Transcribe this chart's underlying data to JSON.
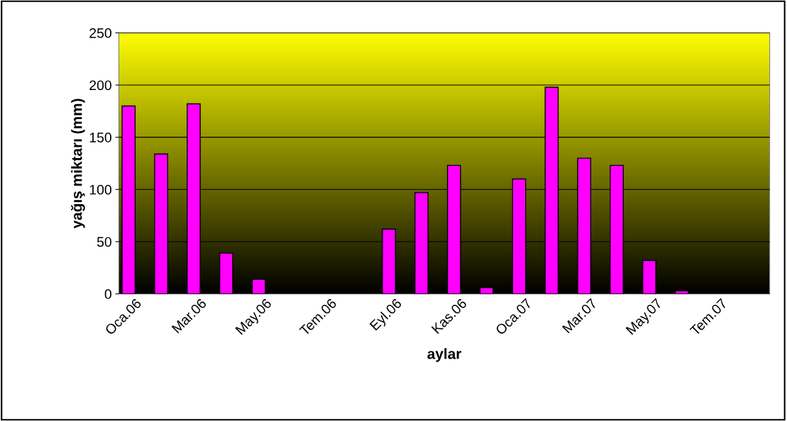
{
  "chart_data": {
    "type": "bar",
    "xlabel": "aylar",
    "ylabel": "yağış miktarı (mm)",
    "categories": [
      "Oca.06",
      null,
      "Mar.06",
      null,
      "May.06",
      null,
      "Tem.06",
      null,
      "Eyl.06",
      null,
      "Kas.06",
      null,
      "Oca.07",
      null,
      "Mar.07",
      null,
      "May.07",
      null,
      "Tem.07",
      null
    ],
    "values": [
      180,
      134,
      182,
      39,
      14,
      0,
      0,
      0,
      62,
      97,
      123,
      6,
      110,
      198,
      130,
      123,
      32,
      3,
      0,
      0
    ],
    "color": "#ff00ff",
    "ylim": [
      0,
      250
    ],
    "yticks": [
      0,
      50,
      100,
      150,
      200,
      250
    ],
    "grid": "y",
    "legend": false
  }
}
